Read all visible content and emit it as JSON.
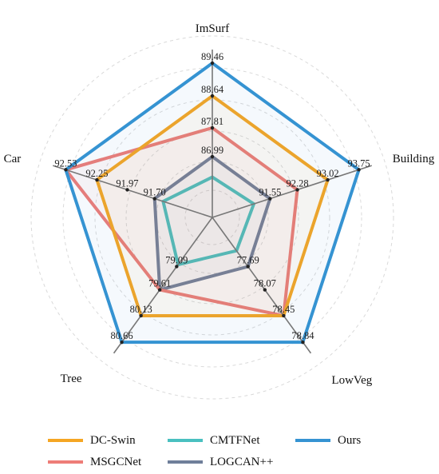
{
  "chart_data": {
    "type": "radar",
    "axes": [
      {
        "name": "ImSurf",
        "ticks": [
          "86.99",
          "87.81",
          "88.64",
          "89.46"
        ]
      },
      {
        "name": "Building",
        "ticks": [
          "91.55",
          "92.28",
          "93.02",
          "93.75"
        ]
      },
      {
        "name": "LowVeg",
        "ticks": [
          "77.69",
          "78.07",
          "78.45",
          "78.84"
        ]
      },
      {
        "name": "Tree",
        "ticks": [
          "79.09",
          "79.61",
          "80.13",
          "80.66"
        ]
      },
      {
        "name": "Car",
        "ticks": [
          "91.70",
          "91.97",
          "92.25",
          "92.53"
        ]
      }
    ],
    "series": [
      {
        "name": "DC-Swin",
        "color": "#f5a623",
        "values": [
          88.64,
          93.02,
          78.45,
          80.13,
          92.25
        ]
      },
      {
        "name": "MSGCNet",
        "color": "#ee7d78",
        "values": [
          87.81,
          92.28,
          78.45,
          79.61,
          92.53
        ]
      },
      {
        "name": "CMTFNet",
        "color": "#49c0c0",
        "values": [
          86.45,
          91.15,
          77.45,
          79.05,
          91.62
        ]
      },
      {
        "name": "LOGCAN++",
        "color": "#6f7f9a",
        "values": [
          86.99,
          91.55,
          77.69,
          79.61,
          91.7
        ]
      },
      {
        "name": "Ours",
        "color": "#3593d2",
        "values": [
          89.46,
          93.75,
          78.84,
          80.66,
          92.53
        ]
      }
    ],
    "grid": true,
    "legend_position": "bottom"
  }
}
